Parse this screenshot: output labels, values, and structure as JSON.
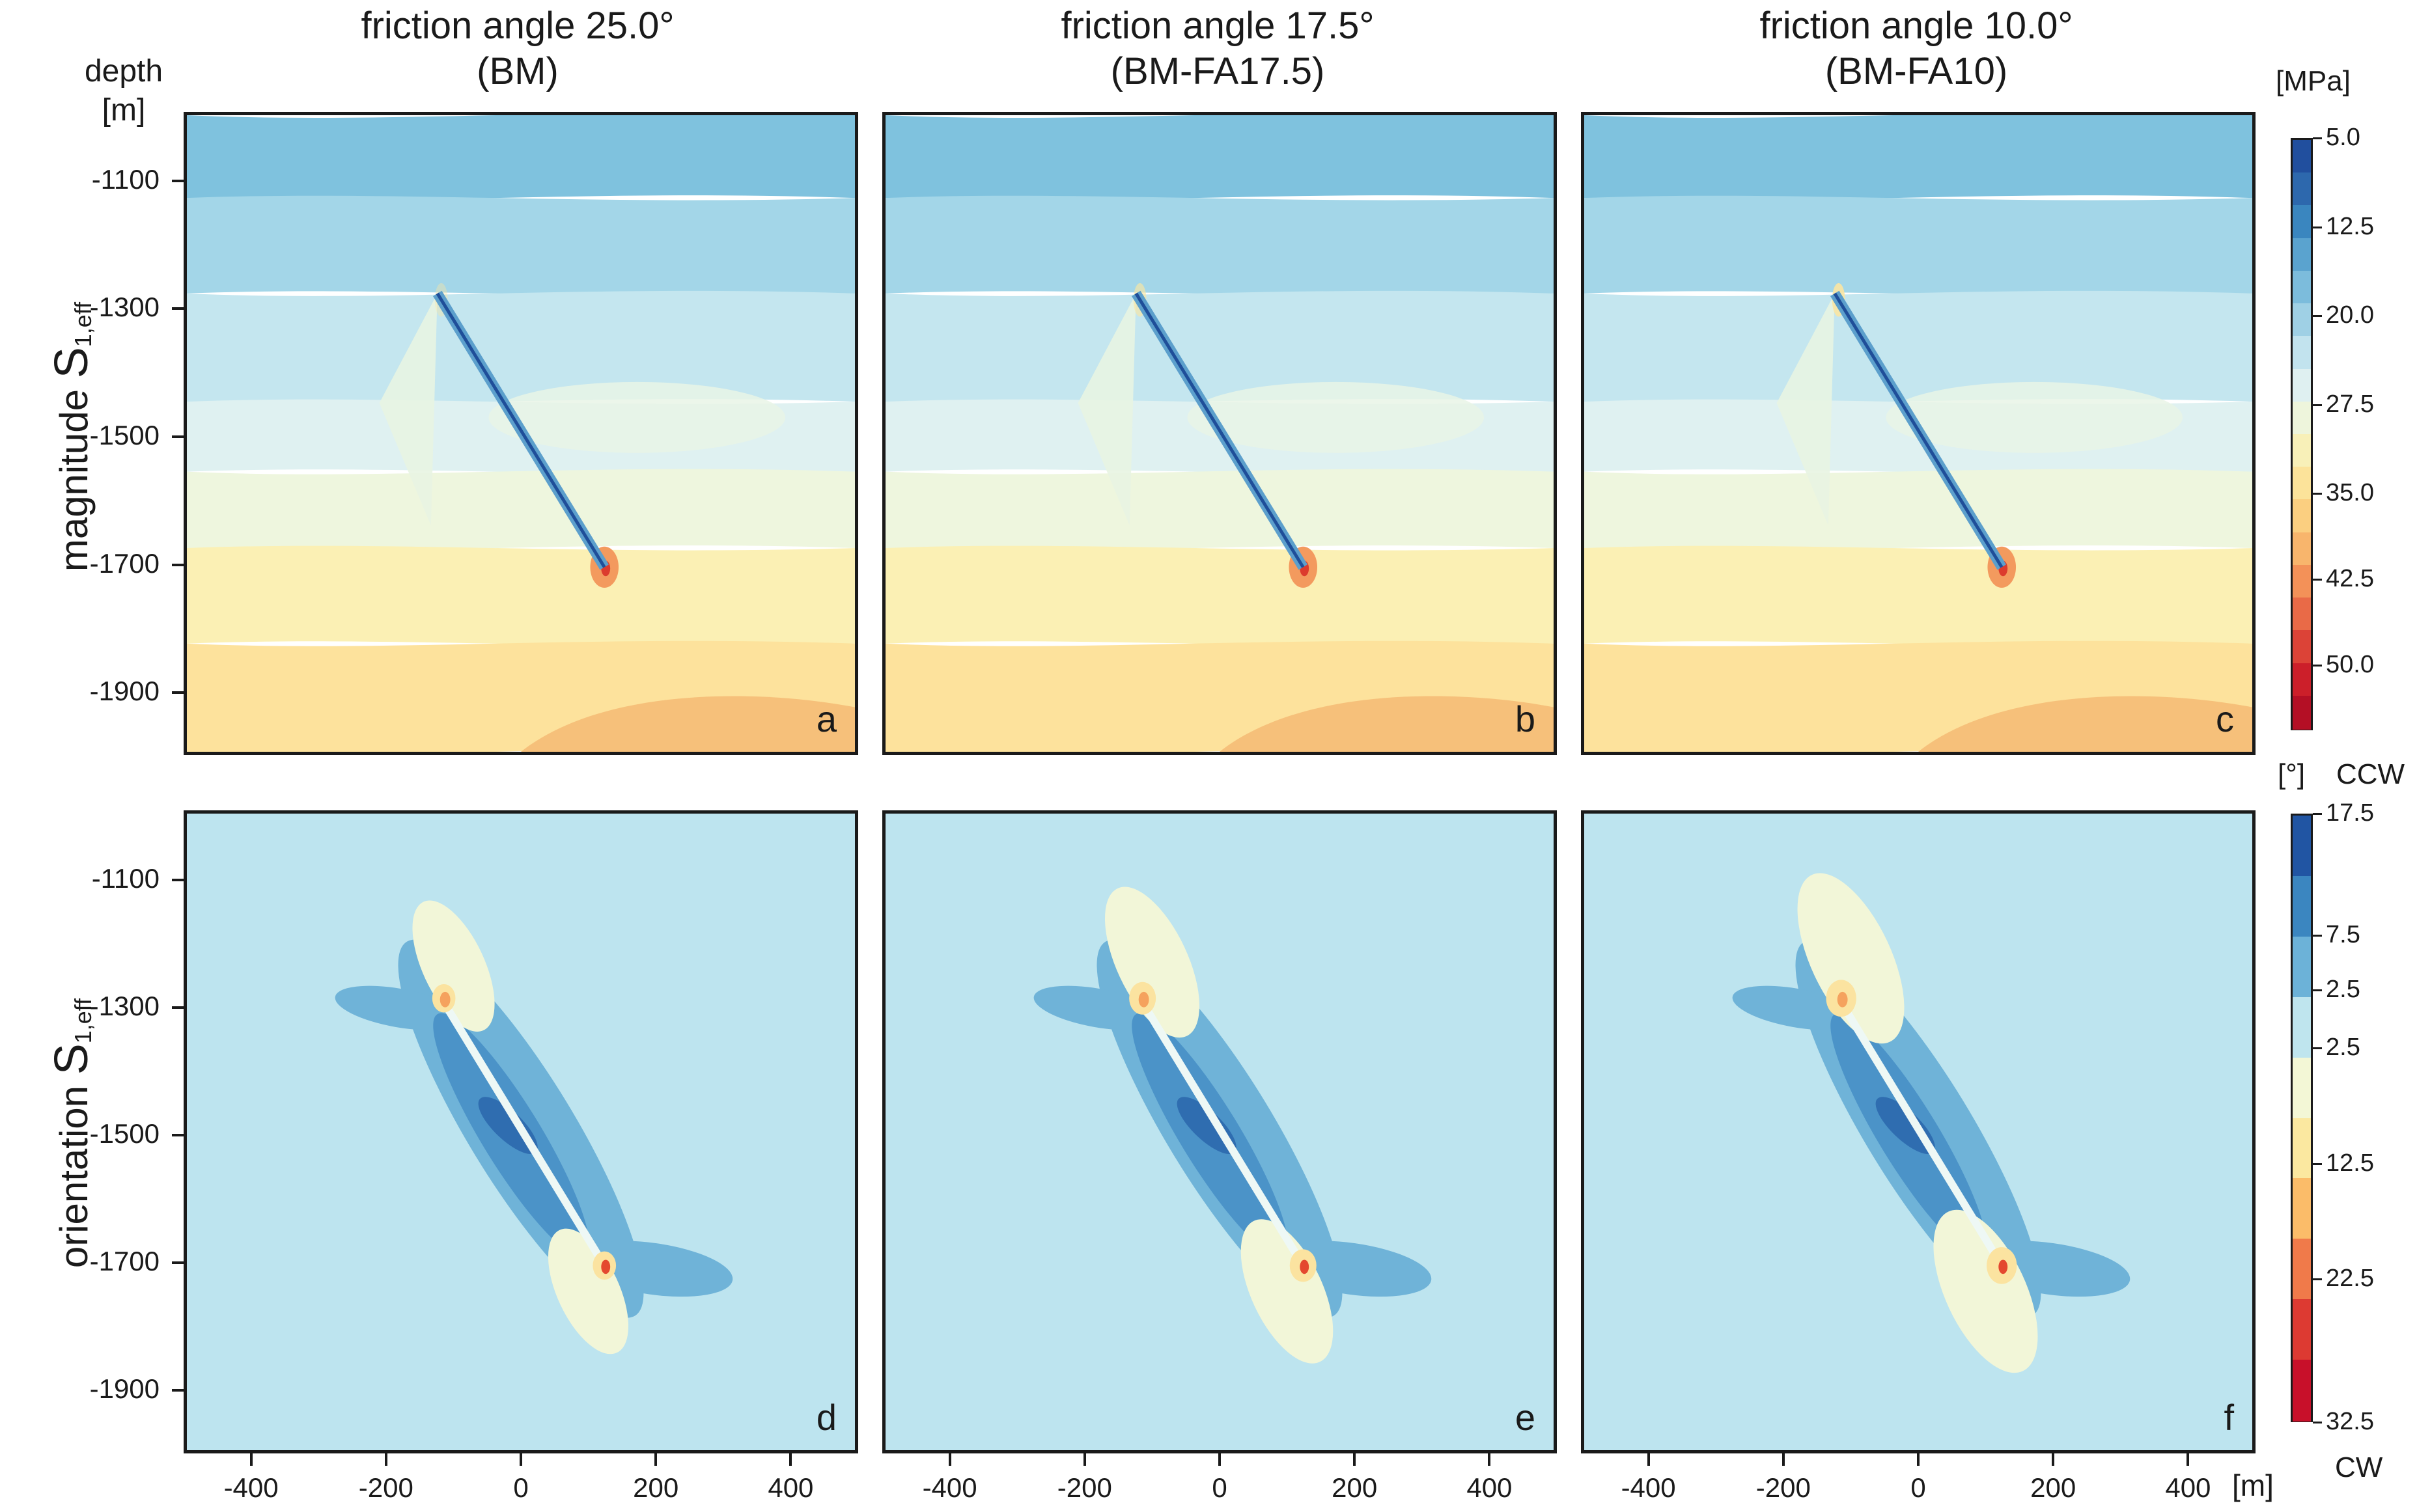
{
  "columns": [
    {
      "line1": "friction angle 25.0°",
      "line2": "(BM)"
    },
    {
      "line1": "friction angle 17.5°",
      "line2": "(BM-FA17.5)"
    },
    {
      "line1": "friction angle 10.0°",
      "line2": "(BM-FA10)"
    }
  ],
  "depth_label": {
    "line1": "depth",
    "line2": "[m]"
  },
  "row_labels": {
    "top": {
      "word": "magnitude ",
      "sym": "S",
      "sub": "1,eff"
    },
    "bottom": {
      "word": "orientation ",
      "sym": "S",
      "sub": "1,eff"
    }
  },
  "panel_letters": [
    "a",
    "b",
    "c",
    "d",
    "e",
    "f"
  ],
  "y_ticks": [
    "-1100",
    "-1300",
    "-1500",
    "-1700",
    "-1900"
  ],
  "x_ticks": [
    "-400",
    "-200",
    "0",
    "200",
    "400"
  ],
  "x_unit": "[m]",
  "colorbar_magnitude": {
    "unit": "[MPa]",
    "ticks": [
      "5.0",
      "12.5",
      "20.0",
      "27.5",
      "35.0",
      "42.5",
      "50.0"
    ],
    "colors": [
      "#214f9e",
      "#2d68ad",
      "#3a86bf",
      "#5aa3cf",
      "#7cbcdc",
      "#9fd0e5",
      "#c2e3ee",
      "#dff0f1",
      "#eef5dc",
      "#f8f0b8",
      "#fce39a",
      "#fbcf80",
      "#f8b56c",
      "#f39158",
      "#e96a47",
      "#dc4337",
      "#cc1f2a",
      "#b40f25"
    ]
  },
  "colorbar_orientation": {
    "unit": "[°]",
    "top_label": "CCW",
    "bottom_label": "CW",
    "ticks": [
      "17.5",
      "7.5",
      "2.5",
      "2.5",
      "12.5",
      "22.5",
      "32.5"
    ],
    "colors": [
      "#2155a3",
      "#3b86c0",
      "#6cb2d8",
      "#bfe5ee",
      "#f3f7d6",
      "#fbe8a0",
      "#fbbc69",
      "#f07a4a",
      "#dd3a32",
      "#c8102a"
    ]
  },
  "colors": {
    "ccw_strong": "#2f6db0",
    "ccw_mid": "#4b93c8",
    "ccw_weak": "#6fb3d8",
    "background_orient": "#bde4ef",
    "cw_weak": "#f2f6d8",
    "cw_mid": "#fbe3a0",
    "cw_strong": "#f5a25e",
    "cw_peak": "#e4482f"
  },
  "chart_data": [
    {
      "type": "heatmap",
      "title": "friction angle 25.0° (BM)",
      "panel": "a",
      "quantity": "magnitude S1,eff",
      "unit": "MPa",
      "xlabel": "[m]",
      "ylabel": "depth [m]",
      "xlim": [
        -500,
        500
      ],
      "ylim": [
        -2000,
        -1000
      ],
      "clim": [
        5.0,
        55.0
      ],
      "colorbar_ticks": [
        5.0,
        12.5,
        20.0,
        27.5,
        35.0,
        42.5,
        50.0
      ],
      "fault": {
        "top": [
          -125,
          -1280
        ],
        "bottom": [
          125,
          -1710
        ]
      },
      "layer_boundaries_depth": [
        -1130,
        -1280,
        -1450,
        -1560,
        -1680,
        -1830
      ],
      "layer_values_mpa": [
        17.5,
        21.0,
        23.5,
        25.5,
        27.5,
        31.0,
        35.5,
        38.5
      ]
    },
    {
      "type": "heatmap",
      "title": "friction angle 17.5° (BM-FA17.5)",
      "panel": "b",
      "quantity": "magnitude S1,eff",
      "unit": "MPa",
      "xlim": [
        -500,
        500
      ],
      "ylim": [
        -2000,
        -1000
      ],
      "clim": [
        5.0,
        55.0
      ],
      "fault": {
        "top": [
          -125,
          -1280
        ],
        "bottom": [
          125,
          -1710
        ]
      },
      "layer_boundaries_depth": [
        -1130,
        -1280,
        -1450,
        -1560,
        -1680,
        -1830
      ],
      "layer_values_mpa": [
        17.5,
        21.0,
        23.5,
        25.5,
        27.5,
        31.0,
        35.5,
        38.5
      ]
    },
    {
      "type": "heatmap",
      "title": "friction angle 10.0° (BM-FA10)",
      "panel": "c",
      "quantity": "magnitude S1,eff",
      "unit": "MPa",
      "xlim": [
        -500,
        500
      ],
      "ylim": [
        -2000,
        -1000
      ],
      "clim": [
        5.0,
        55.0
      ],
      "fault": {
        "top": [
          -125,
          -1280
        ],
        "bottom": [
          125,
          -1710
        ]
      },
      "layer_boundaries_depth": [
        -1130,
        -1280,
        -1450,
        -1560,
        -1680,
        -1830
      ],
      "layer_values_mpa": [
        17.5,
        21.0,
        23.5,
        25.5,
        27.5,
        31.0,
        35.5,
        38.5
      ]
    },
    {
      "type": "heatmap",
      "title": "friction angle 25.0° (BM)",
      "panel": "d",
      "quantity": "orientation S1,eff",
      "unit": "degrees",
      "xlim": [
        -500,
        500
      ],
      "ylim": [
        -2000,
        -1000
      ],
      "colorbar_ticks_ccw": [
        17.5,
        7.5,
        2.5
      ],
      "colorbar_ticks_cw": [
        2.5,
        12.5,
        22.5,
        32.5
      ],
      "fault": {
        "top": [
          -125,
          -1280
        ],
        "bottom": [
          125,
          -1710
        ]
      },
      "lobe_scale": 1.0
    },
    {
      "type": "heatmap",
      "title": "friction angle 17.5° (BM-FA17.5)",
      "panel": "e",
      "quantity": "orientation S1,eff",
      "unit": "degrees",
      "xlim": [
        -500,
        500
      ],
      "ylim": [
        -2000,
        -1000
      ],
      "fault": {
        "top": [
          -125,
          -1280
        ],
        "bottom": [
          125,
          -1710
        ]
      },
      "lobe_scale": 1.15
    },
    {
      "type": "heatmap",
      "title": "friction angle 10.0° (BM-FA10)",
      "panel": "f",
      "quantity": "orientation S1,eff",
      "unit": "degrees",
      "xlim": [
        -500,
        500
      ],
      "ylim": [
        -2000,
        -1000
      ],
      "fault": {
        "top": [
          -125,
          -1280
        ],
        "bottom": [
          125,
          -1710
        ]
      },
      "lobe_scale": 1.3
    }
  ]
}
